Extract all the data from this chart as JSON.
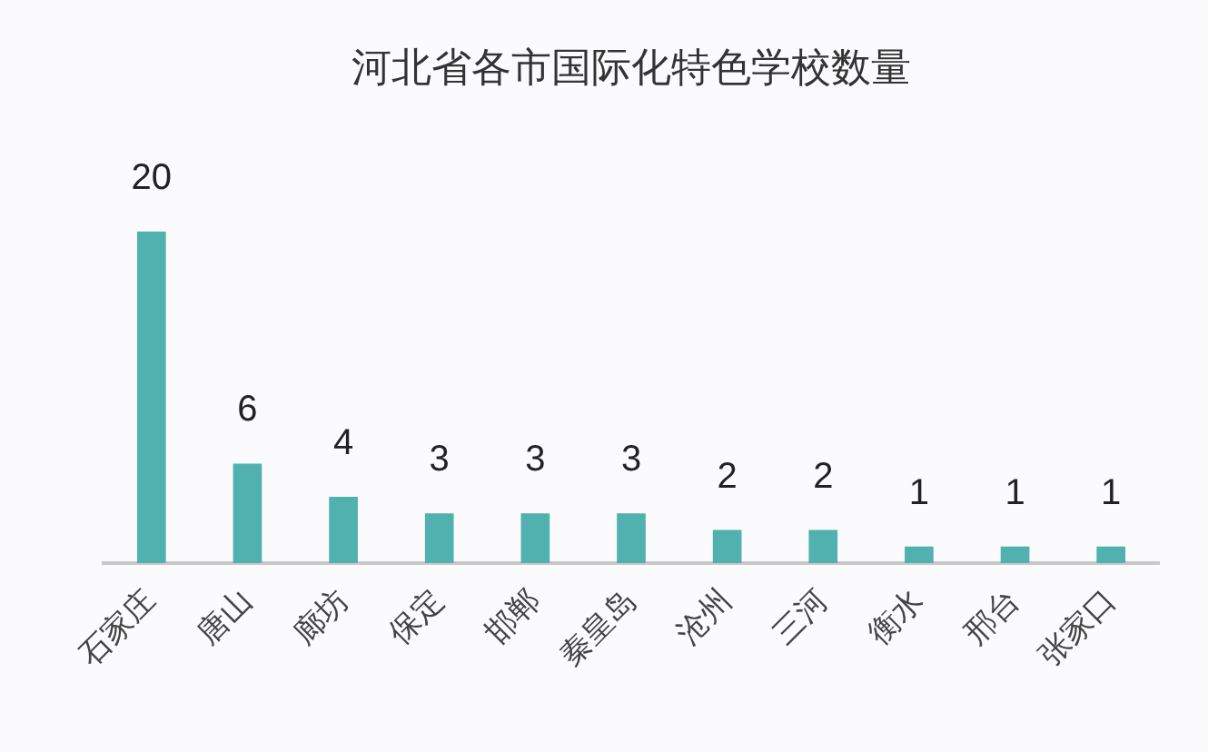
{
  "chart_data": {
    "type": "bar",
    "title": "河北省各市国际化特色学校数量",
    "categories": [
      "石家庄",
      "唐山",
      "廊坊",
      "保定",
      "邯郸",
      "秦皇岛",
      "沧州",
      "三河",
      "衡水",
      "邢台",
      "张家口"
    ],
    "values": [
      20,
      6,
      4,
      3,
      3,
      3,
      2,
      2,
      1,
      1,
      1
    ],
    "color": "#50b1ae",
    "data_labels": true
  }
}
